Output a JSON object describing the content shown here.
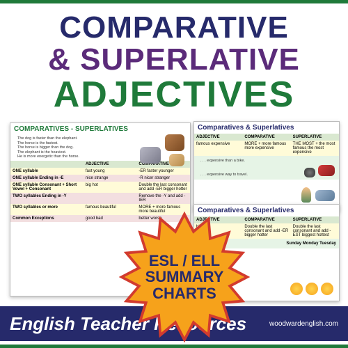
{
  "colors": {
    "border_bar": "#1f7a3a",
    "title_line1": "#262a6b",
    "title_line2": "#5b2b7a",
    "title_line3": "#1f7a3a",
    "star_fill": "#f6a21b",
    "star_stroke": "#d23b2e",
    "star_text": "#262a6b",
    "footer_bg": "#262a6b",
    "chart_header_left": "#1f7a3a",
    "chart_header_right": "#262a6b"
  },
  "header": {
    "line1": "COMPARATIVE",
    "line2": "& SUPERLATIVE",
    "line3": "ADJECTIVES",
    "fontsize_lines12": 44,
    "fontsize_line3": 52
  },
  "starburst": {
    "line1": "ESL / ELL",
    "line2": "SUMMARY",
    "line3": "CHARTS",
    "fontsize": 22,
    "points": 16
  },
  "chart_left": {
    "title": "COMPARATIVES - SUPERLATIVES",
    "examples": [
      "The dog is faster than the elephant.",
      "The horse is the fastest.",
      "The horse is bigger than the dog.",
      "The elephant is the heaviest.",
      "He is more energetic than the horse."
    ],
    "columns": [
      "ADJECTIVE",
      "COMPARATIVE"
    ],
    "rows": [
      {
        "cat": "ONE syllable",
        "adj": "fast\nyoung",
        "comp": "-ER\nfaster\nyounger",
        "bg": "alt-a"
      },
      {
        "cat": "ONE syllable Ending in -E",
        "adj": "nice\nstrange",
        "comp": "-R\nnicer\nstranger",
        "bg": "alt-b"
      },
      {
        "cat": "ONE syllable Consonant + Short Vowel + Consonant",
        "adj": "big\nhot",
        "comp": "Double the last consonant and add -ER\nbigger\nhotter",
        "bg": "alt-a"
      },
      {
        "cat": "TWO syllables Ending in -Y",
        "adj": "",
        "comp": "Remove the -Y and add -IER",
        "bg": "alt-b"
      },
      {
        "cat": "TWO syllables or more",
        "adj": "famous\nbeautiful",
        "comp": "MORE +\nmore famous\nmore beautiful",
        "bg": "alt-a"
      },
      {
        "cat": "Common Exceptions",
        "adj": "good\nbad",
        "comp": "better\nworse",
        "bg": "alt-b"
      }
    ]
  },
  "chart_right_top": {
    "title": "Comparatives & Superlatives",
    "columns": [
      "ADJECTIVE",
      "COMPARATIVE",
      "SUPERLATIVE"
    ],
    "row": {
      "adj": "famous\nexpensive",
      "comp": "MORE +\nmore famous\nmore expensive",
      "sup": "THE MOST +\nthe most famous\nthe most expensive"
    },
    "sentences": [
      ". . . expensive than a bike.",
      ". . . expensive way to travel."
    ]
  },
  "chart_right_bot": {
    "title": "Comparatives & Superlatives",
    "columns": [
      "ADJECTIVE",
      "COMPARATIVE",
      "SUPERLATIVE"
    ],
    "row": {
      "adj": "big\nhot",
      "comp": "Double the last consonant and add -ER\nbigger\nhotter",
      "sup": "Double the last consonant and add -EST\nbiggest\nhottest"
    },
    "days": "Sunday  Monday  Tuesday"
  },
  "footer": {
    "label": "English Teacher Resources",
    "url_line1": "woodwardenglish.com",
    "fontsize_label": 26,
    "fontsize_url": 10
  }
}
